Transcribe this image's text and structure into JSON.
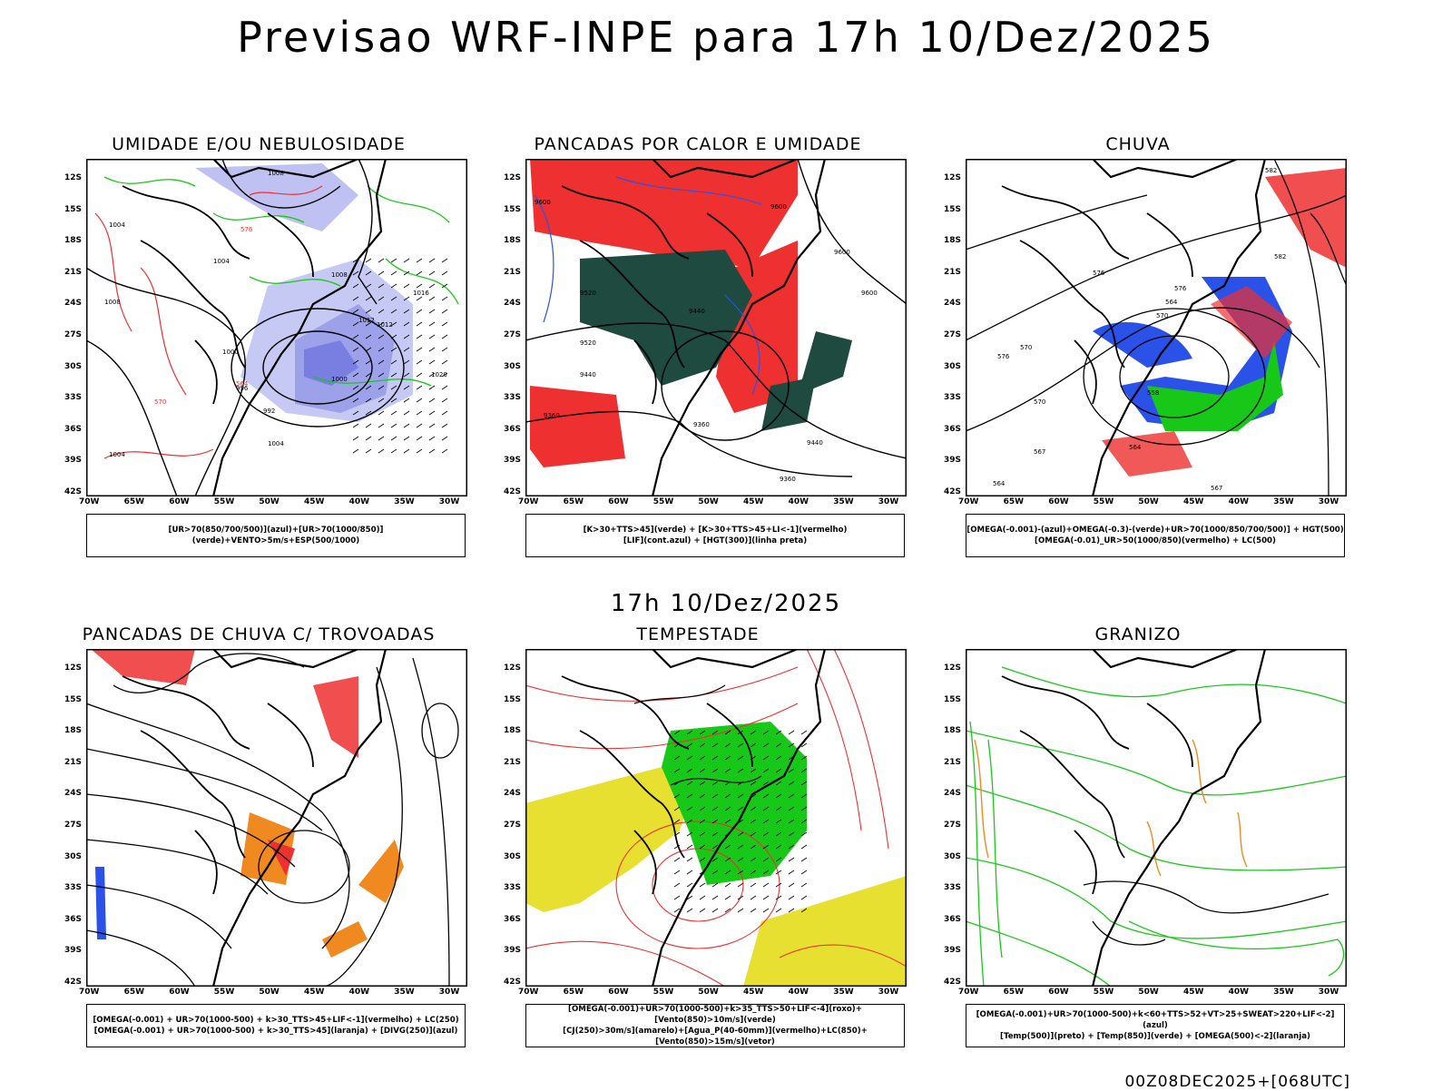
{
  "title": "Previsao WRF-INPE  para 17h 10/Dez/2025",
  "mid_time": "17h 10/Dez/2025",
  "footer": "00Z08DEC2025+[068UTC]",
  "axes": {
    "lat_labels": [
      "12S",
      "15S",
      "18S",
      "21S",
      "24S",
      "27S",
      "30S",
      "33S",
      "36S",
      "39S",
      "42S"
    ],
    "lon_labels": [
      "70W",
      "65W",
      "60W",
      "55W",
      "50W",
      "45W",
      "40W",
      "35W",
      "30W"
    ]
  },
  "colors": {
    "green": "#18c818",
    "red": "#ee3030",
    "blue": "#2a52e8",
    "lavender": "#aeb2ee",
    "darkteal": "#1e4a40",
    "yellow": "#e8e030",
    "orange": "#f08a20"
  },
  "panels": [
    {
      "id": "umidade",
      "title": "UMIDADE E/OU NEBULOSIDADE",
      "legend": [
        "[UR>70(850/700/500)](azul)+[UR>70(1000/850)](verde)+VENTO>5m/s+ESP(500/1000)"
      ],
      "contour_labels": [
        "1008",
        "1004",
        "1008",
        "1004",
        "1012",
        "1000",
        "1008",
        "996",
        "992",
        "1000",
        "1004",
        "1016",
        "1020",
        "1012",
        "1004",
        "576",
        "570",
        "564"
      ]
    },
    {
      "id": "pancadas_calor",
      "title": "PANCADAS POR CALOR E UMIDADE",
      "legend": [
        "[K>30+TTS>45](verde) + [K>30+TTS>45+LI<-1](vermelho)",
        "[LIF](cont.azul) + [HGT(300)](linha preta)"
      ],
      "contour_labels": [
        "9600",
        "9600",
        "9600",
        "9600",
        "9520",
        "9440",
        "9520",
        "9440",
        "9360",
        "9360",
        "9440",
        "9360"
      ]
    },
    {
      "id": "chuva",
      "title": "CHUVA",
      "legend": [
        "[OMEGA(-0.001)-(azul)+OMEGA(-0.3)-(verde)+UR>70(1000/850/700/500)] + HGT(500)",
        "[OMEGA(-0.01)_UR>50(1000/850)(vermelho) + LC(500)"
      ],
      "contour_labels": [
        "582",
        "576",
        "576",
        "570",
        "570",
        "564",
        "576",
        "570",
        "558",
        "564",
        "567",
        "567",
        "582",
        "564"
      ]
    },
    {
      "id": "pancadas_trovoadas",
      "title": "PANCADAS DE CHUVA C/ TROVOADAS",
      "legend": [
        "[OMEGA(-0.001) + UR>70(1000-500) + k>30_TTS>45+LIF<-1](vermelho) + LC(250)",
        "[OMEGA(-0.001) + UR>70(1000-500) + k>30_TTS>45](laranja) + [DIVG(250)](azul)"
      ],
      "contour_labels": []
    },
    {
      "id": "tempestade",
      "title": "TEMPESTADE",
      "legend": [
        "[OMEGA(-0.001)+UR>70(1000-500)+k>35_TTS>50+LIF<-4](roxo)+[Vento(850)>10m/s](verde)",
        "[CJ(250)>30m/s](amarelo)+[Agua_P(40-60mm)](vermelho)+LC(850)+[Vento(850)>15m/s](vetor)"
      ],
      "contour_labels": []
    },
    {
      "id": "granizo",
      "title": "GRANIZO",
      "legend": [
        "[OMEGA(-0.001)+UR>70(1000-500)+k<60+TTS>52+VT>25+SWEAT>220+LIF<-2](azul)",
        "[Temp(500)](preto) + [Temp(850)](verde) + [OMEGA(500)<-2](laranja)"
      ],
      "contour_labels": []
    }
  ]
}
